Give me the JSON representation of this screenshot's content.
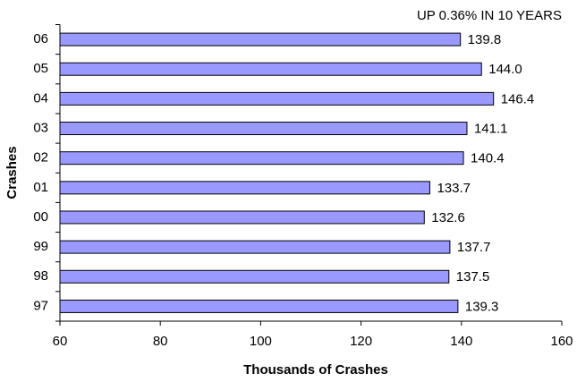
{
  "chart_data": {
    "type": "bar",
    "orientation": "horizontal",
    "title": "UP 0.36% IN 10 YEARS",
    "y_label": "Crashes",
    "x_label": "Thousands of Crashes",
    "categories": [
      "97",
      "98",
      "99",
      "00",
      "01",
      "02",
      "03",
      "04",
      "05",
      "06"
    ],
    "values": [
      139.3,
      137.5,
      137.7,
      132.6,
      133.7,
      140.4,
      141.1,
      146.4,
      144.0,
      139.8
    ],
    "value_labels": [
      "139.3",
      "137.5",
      "137.7",
      "132.6",
      "133.7",
      "140.4",
      "141.1",
      "146.4",
      "144.0",
      "139.8"
    ],
    "color": "#9999ff",
    "xlim": [
      60,
      160
    ],
    "xticks": [
      60,
      80,
      100,
      120,
      140,
      160
    ]
  }
}
